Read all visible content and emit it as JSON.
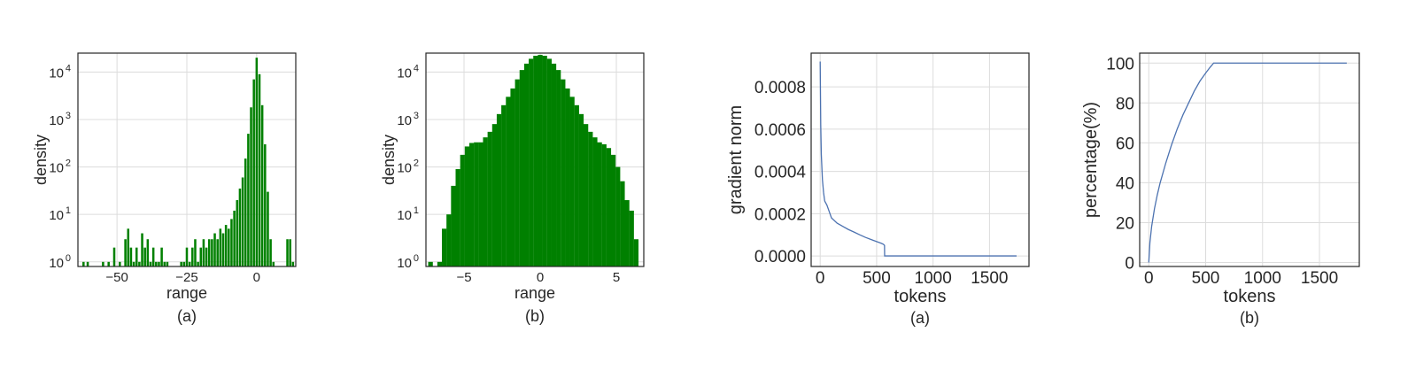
{
  "colors": {
    "histogram": "#008000",
    "line": "#4c72b0",
    "grid": "#dcdcdc",
    "text": "#262626"
  },
  "chart_data": [
    {
      "type": "bar",
      "subcaption": "(a)",
      "xlabel": "range",
      "ylabel": "density",
      "yscale": "log",
      "grid": true,
      "xlim": [
        -64,
        14
      ],
      "ylim": [
        0.8,
        25000
      ],
      "xticks": [
        -50,
        -25,
        0
      ],
      "xticklabels": [
        "−50",
        "−25",
        "0"
      ],
      "yticks": [
        1,
        10,
        100,
        1000,
        10000
      ],
      "yticklabels": [
        {
          "base": "10",
          "exp": "0"
        },
        {
          "base": "10",
          "exp": "1"
        },
        {
          "base": "10",
          "exp": "2"
        },
        {
          "base": "10",
          "exp": "3"
        },
        {
          "base": "10",
          "exp": "4"
        }
      ],
      "series": [
        {
          "values": [
            {
              "x": -62,
              "y": 1
            },
            {
              "x": -60.5,
              "y": 1
            },
            {
              "x": -55,
              "y": 1
            },
            {
              "x": -53,
              "y": 1
            },
            {
              "x": -51,
              "y": 2
            },
            {
              "x": -49,
              "y": 1
            },
            {
              "x": -47,
              "y": 3
            },
            {
              "x": -46,
              "y": 5
            },
            {
              "x": -45,
              "y": 2
            },
            {
              "x": -44,
              "y": 1
            },
            {
              "x": -43,
              "y": 2
            },
            {
              "x": -42,
              "y": 1
            },
            {
              "x": -41,
              "y": 4
            },
            {
              "x": -40,
              "y": 2
            },
            {
              "x": -39,
              "y": 3
            },
            {
              "x": -38,
              "y": 1
            },
            {
              "x": -37,
              "y": 2
            },
            {
              "x": -36,
              "y": 1
            },
            {
              "x": -35,
              "y": 1
            },
            {
              "x": -34,
              "y": 2
            },
            {
              "x": -33,
              "y": 1
            },
            {
              "x": -32,
              "y": 1
            },
            {
              "x": -27,
              "y": 1
            },
            {
              "x": -26,
              "y": 1
            },
            {
              "x": -25,
              "y": 2
            },
            {
              "x": -24,
              "y": 1
            },
            {
              "x": -23,
              "y": 2
            },
            {
              "x": -22,
              "y": 3
            },
            {
              "x": -21,
              "y": 1
            },
            {
              "x": -20,
              "y": 2
            },
            {
              "x": -19,
              "y": 3
            },
            {
              "x": -18,
              "y": 2
            },
            {
              "x": -17,
              "y": 3
            },
            {
              "x": -16,
              "y": 3
            },
            {
              "x": -15,
              "y": 4
            },
            {
              "x": -14,
              "y": 3
            },
            {
              "x": -13,
              "y": 5
            },
            {
              "x": -12,
              "y": 4
            },
            {
              "x": -11,
              "y": 6
            },
            {
              "x": -10,
              "y": 5
            },
            {
              "x": -9,
              "y": 8
            },
            {
              "x": -8,
              "y": 12
            },
            {
              "x": -7,
              "y": 20
            },
            {
              "x": -6,
              "y": 35
            },
            {
              "x": -5,
              "y": 60
            },
            {
              "x": -4,
              "y": 150
            },
            {
              "x": -3,
              "y": 500
            },
            {
              "x": -2,
              "y": 1800
            },
            {
              "x": -1,
              "y": 7000
            },
            {
              "x": 0,
              "y": 20000
            },
            {
              "x": 1,
              "y": 9000
            },
            {
              "x": 2,
              "y": 2000
            },
            {
              "x": 3,
              "y": 300
            },
            {
              "x": 4,
              "y": 30
            },
            {
              "x": 5,
              "y": 3
            },
            {
              "x": 6,
              "y": 1
            },
            {
              "x": 11,
              "y": 3
            },
            {
              "x": 12,
              "y": 3
            },
            {
              "x": 13,
              "y": 1
            }
          ]
        }
      ]
    },
    {
      "type": "bar",
      "subcaption": "(b)",
      "xlabel": "range",
      "ylabel": "density",
      "yscale": "log",
      "grid": true,
      "xlim": [
        -7.5,
        6.8
      ],
      "ylim": [
        0.8,
        25000
      ],
      "xticks": [
        -5,
        0,
        5
      ],
      "xticklabels": [
        "−5",
        "0",
        "5"
      ],
      "yticks": [
        1,
        10,
        100,
        1000,
        10000
      ],
      "yticklabels": [
        {
          "base": "10",
          "exp": "0"
        },
        {
          "base": "10",
          "exp": "1"
        },
        {
          "base": "10",
          "exp": "2"
        },
        {
          "base": "10",
          "exp": "3"
        },
        {
          "base": "10",
          "exp": "4"
        }
      ],
      "series": [
        {
          "values": [
            {
              "x": -7.2,
              "y": 1
            },
            {
              "x": -6.6,
              "y": 1
            },
            {
              "x": -6.3,
              "y": 5
            },
            {
              "x": -6.0,
              "y": 10
            },
            {
              "x": -5.7,
              "y": 40
            },
            {
              "x": -5.4,
              "y": 90
            },
            {
              "x": -5.1,
              "y": 180
            },
            {
              "x": -4.8,
              "y": 270
            },
            {
              "x": -4.5,
              "y": 320
            },
            {
              "x": -4.2,
              "y": 330
            },
            {
              "x": -3.9,
              "y": 330
            },
            {
              "x": -3.6,
              "y": 420
            },
            {
              "x": -3.3,
              "y": 550
            },
            {
              "x": -3.0,
              "y": 800
            },
            {
              "x": -2.7,
              "y": 1300
            },
            {
              "x": -2.4,
              "y": 2000
            },
            {
              "x": -2.1,
              "y": 3000
            },
            {
              "x": -1.8,
              "y": 4500
            },
            {
              "x": -1.5,
              "y": 7000
            },
            {
              "x": -1.2,
              "y": 11000
            },
            {
              "x": -0.9,
              "y": 15000
            },
            {
              "x": -0.6,
              "y": 19000
            },
            {
              "x": -0.3,
              "y": 22000
            },
            {
              "x": 0.0,
              "y": 23000
            },
            {
              "x": 0.3,
              "y": 22000
            },
            {
              "x": 0.6,
              "y": 19000
            },
            {
              "x": 0.9,
              "y": 15000
            },
            {
              "x": 1.2,
              "y": 11000
            },
            {
              "x": 1.5,
              "y": 7000
            },
            {
              "x": 1.8,
              "y": 4500
            },
            {
              "x": 2.1,
              "y": 3000
            },
            {
              "x": 2.4,
              "y": 2000
            },
            {
              "x": 2.7,
              "y": 1300
            },
            {
              "x": 3.0,
              "y": 800
            },
            {
              "x": 3.3,
              "y": 550
            },
            {
              "x": 3.6,
              "y": 420
            },
            {
              "x": 3.9,
              "y": 330
            },
            {
              "x": 4.2,
              "y": 300
            },
            {
              "x": 4.5,
              "y": 250
            },
            {
              "x": 4.8,
              "y": 180
            },
            {
              "x": 5.1,
              "y": 100
            },
            {
              "x": 5.4,
              "y": 50
            },
            {
              "x": 5.7,
              "y": 20
            },
            {
              "x": 6.0,
              "y": 12
            },
            {
              "x": 6.3,
              "y": 3
            }
          ]
        }
      ]
    },
    {
      "type": "line",
      "subcaption": "(a)",
      "xlabel": "tokens",
      "ylabel": "gradient norm",
      "grid": true,
      "xlim": [
        -80,
        1850
      ],
      "ylim": [
        -5e-05,
        0.00096
      ],
      "xticks": [
        0,
        500,
        1000,
        1500
      ],
      "xticklabels": [
        "0",
        "500",
        "1000",
        "1500"
      ],
      "yticks": [
        0,
        0.0002,
        0.0004,
        0.0006,
        0.0008
      ],
      "yticklabels": [
        "0.0000",
        "0.0002",
        "0.0004",
        "0.0006",
        "0.0008"
      ],
      "series": [
        {
          "x": [
            0,
            5,
            10,
            20,
            30,
            40,
            60,
            80,
            100,
            150,
            200,
            250,
            300,
            350,
            400,
            450,
            500,
            540,
            560,
            570,
            571,
            600,
            800,
            1000,
            1200,
            1400,
            1600,
            1740
          ],
          "y": [
            0.00092,
            0.00062,
            0.00048,
            0.00036,
            0.0003,
            0.00026,
            0.00024,
            0.00021,
            0.00018,
            0.000155,
            0.00014,
            0.000125,
            0.000113,
            0.0001,
            8.8e-05,
            7.8e-05,
            6.8e-05,
            6e-05,
            5.5e-05,
            5e-05,
            0.0,
            0.0,
            0.0,
            0.0,
            0.0,
            0.0,
            0.0,
            0.0
          ]
        }
      ]
    },
    {
      "type": "line",
      "subcaption": "(b)",
      "xlabel": "tokens",
      "ylabel": "percentage(%)",
      "grid": true,
      "xlim": [
        -80,
        1850
      ],
      "ylim": [
        -2,
        105
      ],
      "xticks": [
        0,
        500,
        1000,
        1500
      ],
      "xticklabels": [
        "0",
        "500",
        "1000",
        "1500"
      ],
      "yticks": [
        0,
        20,
        40,
        60,
        80,
        100
      ],
      "yticklabels": [
        "0",
        "20",
        "40",
        "60",
        "80",
        "100"
      ],
      "series": [
        {
          "x": [
            0,
            10,
            25,
            50,
            75,
            100,
            150,
            200,
            250,
            300,
            350,
            400,
            450,
            500,
            540,
            570,
            800,
            1000,
            1200,
            1400,
            1600,
            1740
          ],
          "y": [
            0,
            10,
            18,
            27,
            34,
            40,
            50,
            59,
            67,
            74,
            80,
            86,
            91,
            95,
            98,
            100,
            100,
            100,
            100,
            100,
            100,
            100
          ]
        }
      ]
    }
  ]
}
